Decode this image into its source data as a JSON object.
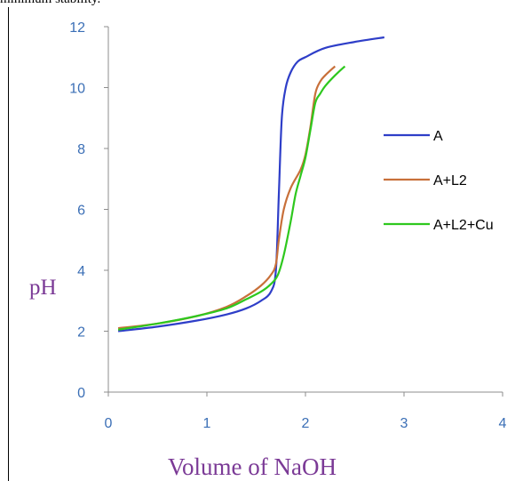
{
  "caption": "minimum stability.",
  "chart_data": {
    "type": "line",
    "title": "",
    "xlabel": "Volume of NaOH",
    "ylabel": "pH",
    "xlim": [
      0,
      4
    ],
    "ylim": [
      0,
      12
    ],
    "xticks": [
      0,
      1,
      2,
      3,
      4
    ],
    "yticks": [
      0,
      2,
      4,
      6,
      8,
      10,
      12
    ],
    "grid": false,
    "legend_position": "right",
    "series": [
      {
        "name": "A",
        "color": "#2e3ec8",
        "x": [
          0.1,
          0.5,
          0.9,
          1.2,
          1.4,
          1.55,
          1.65,
          1.7,
          1.73,
          1.76,
          1.8,
          1.85,
          1.92,
          2.0,
          2.2,
          2.5,
          2.8
        ],
        "y": [
          2.0,
          2.15,
          2.35,
          2.55,
          2.75,
          3.0,
          3.3,
          4.0,
          6.5,
          9.0,
          10.0,
          10.5,
          10.85,
          11.0,
          11.3,
          11.5,
          11.65
        ]
      },
      {
        "name": "A+L2",
        "color": "#c8703a",
        "x": [
          0.1,
          0.5,
          0.9,
          1.2,
          1.4,
          1.55,
          1.65,
          1.7,
          1.73,
          1.78,
          1.85,
          1.95,
          2.0,
          2.05,
          2.1,
          2.15,
          2.2,
          2.3
        ],
        "y": [
          2.1,
          2.25,
          2.5,
          2.8,
          3.15,
          3.5,
          3.85,
          4.2,
          5.0,
          6.0,
          6.7,
          7.3,
          7.8,
          8.7,
          9.8,
          10.2,
          10.4,
          10.7
        ]
      },
      {
        "name": "A+L2+Cu",
        "color": "#2ec81e",
        "x": [
          0.1,
          0.5,
          0.9,
          1.2,
          1.4,
          1.55,
          1.65,
          1.72,
          1.78,
          1.85,
          1.9,
          1.95,
          2.0,
          2.05,
          2.1,
          2.15,
          2.2,
          2.3,
          2.4
        ],
        "y": [
          2.05,
          2.25,
          2.5,
          2.75,
          3.05,
          3.3,
          3.55,
          3.85,
          4.5,
          5.6,
          6.5,
          7.1,
          7.7,
          8.6,
          9.5,
          9.8,
          10.05,
          10.4,
          10.7
        ]
      }
    ]
  }
}
